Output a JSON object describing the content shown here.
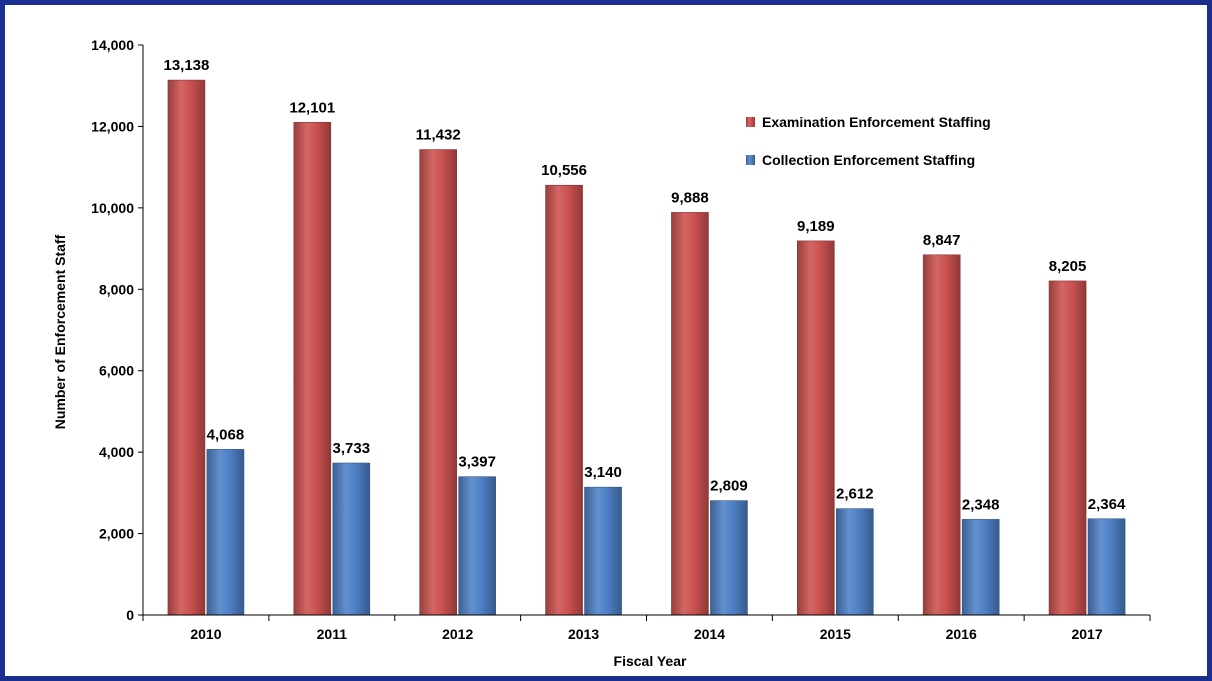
{
  "chart_data": {
    "type": "bar",
    "title": "",
    "xlabel": "Fiscal Year",
    "ylabel": "Number of Enforcement Staff",
    "categories": [
      "2010",
      "2011",
      "2012",
      "2013",
      "2014",
      "2015",
      "2016",
      "2017"
    ],
    "series": [
      {
        "name": "Examination Enforcement Staffing",
        "color": "#cc5250",
        "values": [
          13138,
          12101,
          11432,
          10556,
          9888,
          9189,
          8847,
          8205
        ],
        "labels": [
          "13,138",
          "12,101",
          "11,432",
          "10,556",
          "9,888",
          "9,189",
          "8,847",
          "8,205"
        ]
      },
      {
        "name": "Collection Enforcement Staffing",
        "color": "#4f81c7",
        "values": [
          4068,
          3733,
          3397,
          3140,
          2809,
          2612,
          2348,
          2364
        ],
        "labels": [
          "4,068",
          "3,733",
          "3,397",
          "3,140",
          "2,809",
          "2,612",
          "2,348",
          "2,364"
        ]
      }
    ],
    "ylim": [
      0,
      14000
    ],
    "yticks": [
      0,
      2000,
      4000,
      6000,
      8000,
      10000,
      12000,
      14000
    ],
    "ytick_labels": [
      "0",
      "2,000",
      "4,000",
      "6,000",
      "8,000",
      "10,000",
      "12,000",
      "14,000"
    ],
    "grid": false,
    "legend_position": "top-right",
    "frame_color": "#1a2f8f"
  }
}
